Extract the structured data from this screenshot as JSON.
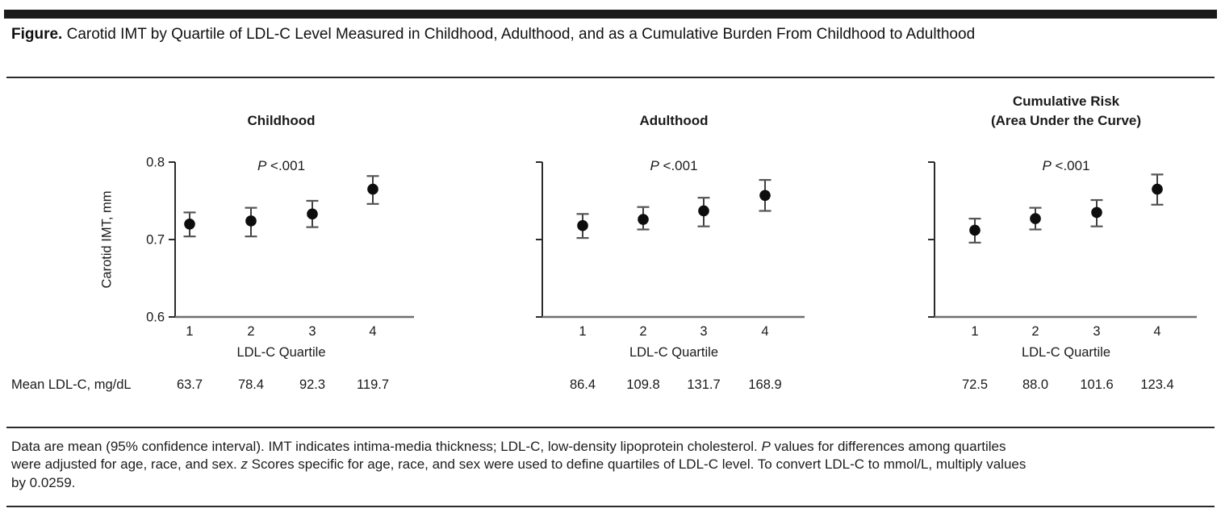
{
  "figure": {
    "caption_label": "Figure.",
    "caption_text": " Carotid IMT by Quartile of LDL-C Level Measured in Childhood, Adulthood, and as a Cumulative Burden From Childhood to Adulthood"
  },
  "mean_row_label": "Mean LDL-C, mg/dL",
  "footnote": {
    "lines": [
      "Data are mean (95% confidence interval). IMT indicates intima-media thickness; LDL-C, low-density lipoprotein cholesterol. P values for differences among quartiles",
      "were adjusted for age, race, and sex. z Scores specific for age, race, and sex were used to define quartiles of LDL-C level. To convert LDL-C to mmol/L, multiply values",
      "by 0.0259."
    ]
  },
  "chart_data": [
    {
      "type": "scatter",
      "title": "Childhood",
      "p_italic": "P",
      "p_rest": " <.001",
      "xlabel": "LDL-C Quartile",
      "ylabel": "Carotid IMT, mm",
      "x": [
        1,
        2,
        3,
        4
      ],
      "y": [
        0.72,
        0.724,
        0.733,
        0.765
      ],
      "ci_low": [
        0.704,
        0.704,
        0.716,
        0.746
      ],
      "ci_high": [
        0.735,
        0.741,
        0.75,
        0.782
      ],
      "mean_ldl": [
        "63.7",
        "78.4",
        "92.3",
        "119.7"
      ],
      "ylim": [
        0.6,
        0.8
      ],
      "yticks": [
        0.6,
        0.7,
        0.8
      ],
      "ytick_labels": [
        "0.6",
        "0.7",
        "0.8"
      ],
      "show_ytick_labels": true,
      "grid": false,
      "legend": "none"
    },
    {
      "type": "scatter",
      "title": "Adulthood",
      "p_italic": "P",
      "p_rest": " <.001",
      "xlabel": "LDL-C Quartile",
      "x": [
        1,
        2,
        3,
        4
      ],
      "y": [
        0.718,
        0.726,
        0.737,
        0.757
      ],
      "ci_low": [
        0.702,
        0.713,
        0.717,
        0.737
      ],
      "ci_high": [
        0.733,
        0.742,
        0.754,
        0.777
      ],
      "mean_ldl": [
        "86.4",
        "109.8",
        "131.7",
        "168.9"
      ],
      "ylim": [
        0.6,
        0.8
      ],
      "yticks": [
        0.6,
        0.7,
        0.8
      ],
      "ytick_labels": [],
      "show_ytick_labels": false,
      "grid": false,
      "legend": "none"
    },
    {
      "type": "scatter",
      "title": "Cumulative Risk\n(Area Under the Curve)",
      "p_italic": "P",
      "p_rest": " <.001",
      "xlabel": "LDL-C Quartile",
      "x": [
        1,
        2,
        3,
        4
      ],
      "y": [
        0.712,
        0.727,
        0.735,
        0.765
      ],
      "ci_low": [
        0.696,
        0.713,
        0.717,
        0.745
      ],
      "ci_high": [
        0.727,
        0.741,
        0.751,
        0.784
      ],
      "mean_ldl": [
        "72.5",
        "88.0",
        "101.6",
        "123.4"
      ],
      "ylim": [
        0.6,
        0.8
      ],
      "yticks": [
        0.6,
        0.7,
        0.8
      ],
      "ytick_labels": [],
      "show_ytick_labels": false,
      "grid": false,
      "legend": "none"
    }
  ]
}
